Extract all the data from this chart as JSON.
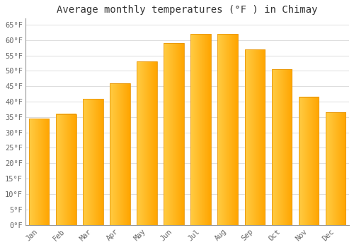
{
  "title": "Average monthly temperatures (°F ) in Chimay",
  "months": [
    "Jan",
    "Feb",
    "Mar",
    "Apr",
    "May",
    "Jun",
    "Jul",
    "Aug",
    "Sep",
    "Oct",
    "Nov",
    "Dec"
  ],
  "values": [
    34.5,
    36,
    41,
    46,
    53,
    59,
    62,
    62,
    57,
    50.5,
    41.5,
    36.5
  ],
  "bar_color_left": "#FFCC44",
  "bar_color_right": "#FFA500",
  "bar_edge_color": "#E8960A",
  "background_color": "#FFFFFF",
  "grid_color": "#DDDDDD",
  "yticks": [
    0,
    5,
    10,
    15,
    20,
    25,
    30,
    35,
    40,
    45,
    50,
    55,
    60,
    65
  ],
  "ylim": [
    0,
    67
  ],
  "title_fontsize": 10,
  "tick_fontsize": 7.5,
  "title_color": "#333333",
  "tick_color": "#666666",
  "font_family": "monospace"
}
